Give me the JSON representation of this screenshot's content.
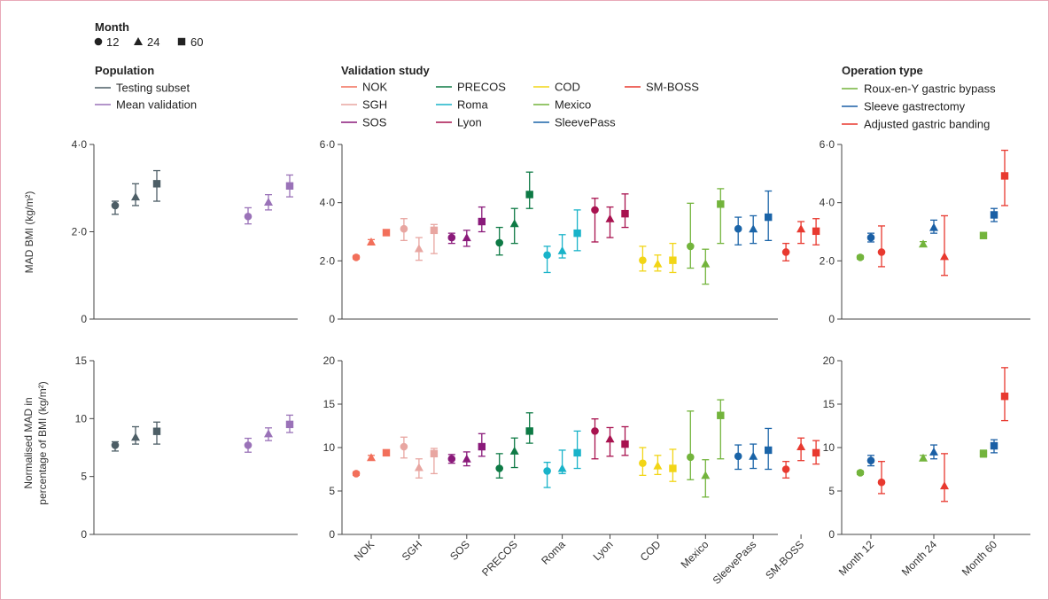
{
  "legend": {
    "month": {
      "title": "Month",
      "items": [
        "12",
        "24",
        "60"
      ]
    },
    "population": {
      "title": "Population",
      "items": [
        {
          "label": "Testing subset",
          "color": "#4d5e66"
        },
        {
          "label": "Mean validation",
          "color": "#9a72b8"
        }
      ]
    },
    "validation": {
      "title": "Validation study",
      "items": [
        {
          "label": "NOK",
          "color": "#f26f5a"
        },
        {
          "label": "SGH",
          "color": "#e8a6a1"
        },
        {
          "label": "SOS",
          "color": "#8a1a7a"
        },
        {
          "label": "PRECOS",
          "color": "#0e7a45"
        },
        {
          "label": "Roma",
          "color": "#19b3c9"
        },
        {
          "label": "Lyon",
          "color": "#a8124f"
        },
        {
          "label": "COD",
          "color": "#f2d516"
        },
        {
          "label": "Mexico",
          "color": "#73b43c"
        },
        {
          "label": "SleevePass",
          "color": "#1a64a8"
        },
        {
          "label": "SM-BOSS",
          "color": "#e8392f"
        }
      ]
    },
    "operation": {
      "title": "Operation type",
      "items": [
        {
          "label": "Roux-en-Y gastric bypass",
          "color": "#73b43c"
        },
        {
          "label": "Sleeve gastrectomy",
          "color": "#1a5fa5"
        },
        {
          "label": "Adjusted gastric banding",
          "color": "#e8392f"
        }
      ]
    }
  },
  "y_labels": {
    "top": "MAD BMI (kg/m²)",
    "bottom_line1": "Normalised MAD in",
    "bottom_line2": "percentage of BMI (kg/m²)"
  },
  "chart_data": [
    {
      "type": "scatter",
      "panel": "population-mad",
      "ylabel": "MAD BMI (kg/m²)",
      "ylim": [
        0,
        4
      ],
      "yticks": [
        "0",
        "2·0",
        "4·0"
      ],
      "groups": [
        "Testing subset",
        "Mean validation"
      ],
      "series": [
        {
          "name": "Testing subset",
          "color": "#4d5e66",
          "points": [
            {
              "month": 12,
              "y": 2.6,
              "lo": 2.4,
              "hi": 2.7
            },
            {
              "month": 24,
              "y": 2.8,
              "lo": 2.6,
              "hi": 3.1
            },
            {
              "month": 60,
              "y": 3.1,
              "lo": 2.7,
              "hi": 3.4
            }
          ]
        },
        {
          "name": "Mean validation",
          "color": "#9a72b8",
          "points": [
            {
              "month": 12,
              "y": 2.35,
              "lo": 2.18,
              "hi": 2.55
            },
            {
              "month": 24,
              "y": 2.68,
              "lo": 2.5,
              "hi": 2.85
            },
            {
              "month": 60,
              "y": 3.05,
              "lo": 2.8,
              "hi": 3.3
            }
          ]
        }
      ]
    },
    {
      "type": "scatter",
      "panel": "validation-mad",
      "ylim": [
        0,
        6
      ],
      "yticks": [
        "0",
        "2·0",
        "4·0",
        "6·0"
      ],
      "groups": [
        "NOK",
        "SGH",
        "SOS",
        "PRECOS",
        "Roma",
        "Lyon",
        "COD",
        "Mexico",
        "SleevePass",
        "SM-BOSS"
      ],
      "series": [
        {
          "name": "NOK",
          "color": "#f26f5a",
          "points": [
            {
              "month": 12,
              "y": 2.12,
              "lo": 2.06,
              "hi": 2.18
            },
            {
              "month": 24,
              "y": 2.65,
              "lo": 2.57,
              "hi": 2.73
            },
            {
              "month": 60,
              "y": 2.97,
              "lo": 2.89,
              "hi": 3.05
            }
          ]
        },
        {
          "name": "SGH",
          "color": "#e8a6a1",
          "points": [
            {
              "month": 12,
              "y": 3.1,
              "lo": 2.7,
              "hi": 3.45
            },
            {
              "month": 24,
              "y": 2.42,
              "lo": 2.02,
              "hi": 2.8
            },
            {
              "month": 60,
              "y": 3.05,
              "lo": 2.25,
              "hi": 3.25
            }
          ]
        },
        {
          "name": "SOS",
          "color": "#8a1a7a",
          "points": [
            {
              "month": 12,
              "y": 2.8,
              "lo": 2.6,
              "hi": 2.95
            },
            {
              "month": 24,
              "y": 2.8,
              "lo": 2.5,
              "hi": 3.05
            },
            {
              "month": 60,
              "y": 3.35,
              "lo": 3.0,
              "hi": 3.85
            }
          ]
        },
        {
          "name": "PRECOS",
          "color": "#0e7a45",
          "points": [
            {
              "month": 12,
              "y": 2.62,
              "lo": 2.2,
              "hi": 3.15
            },
            {
              "month": 24,
              "y": 3.28,
              "lo": 2.6,
              "hi": 3.8
            },
            {
              "month": 60,
              "y": 4.28,
              "lo": 3.8,
              "hi": 5.05
            }
          ]
        },
        {
          "name": "Roma",
          "color": "#19b3c9",
          "points": [
            {
              "month": 12,
              "y": 2.2,
              "lo": 1.6,
              "hi": 2.5
            },
            {
              "month": 24,
              "y": 2.35,
              "lo": 2.1,
              "hi": 2.9
            },
            {
              "month": 60,
              "y": 2.95,
              "lo": 2.35,
              "hi": 3.75
            }
          ]
        },
        {
          "name": "Lyon",
          "color": "#a8124f",
          "points": [
            {
              "month": 12,
              "y": 3.75,
              "lo": 2.65,
              "hi": 4.15
            },
            {
              "month": 24,
              "y": 3.45,
              "lo": 2.8,
              "hi": 3.85
            },
            {
              "month": 60,
              "y": 3.62,
              "lo": 3.15,
              "hi": 4.3
            }
          ]
        },
        {
          "name": "COD",
          "color": "#f2d516",
          "points": [
            {
              "month": 12,
              "y": 2.02,
              "lo": 1.65,
              "hi": 2.5
            },
            {
              "month": 24,
              "y": 1.9,
              "lo": 1.65,
              "hi": 2.2
            },
            {
              "month": 60,
              "y": 2.02,
              "lo": 1.6,
              "hi": 2.6
            }
          ]
        },
        {
          "name": "Mexico",
          "color": "#73b43c",
          "points": [
            {
              "month": 12,
              "y": 2.5,
              "lo": 1.75,
              "hi": 3.98
            },
            {
              "month": 24,
              "y": 1.9,
              "lo": 1.2,
              "hi": 2.4
            },
            {
              "month": 60,
              "y": 3.95,
              "lo": 2.6,
              "hi": 4.48
            }
          ]
        },
        {
          "name": "SleevePass",
          "color": "#1a64a8",
          "points": [
            {
              "month": 12,
              "y": 3.1,
              "lo": 2.55,
              "hi": 3.5
            },
            {
              "month": 24,
              "y": 3.1,
              "lo": 2.6,
              "hi": 3.55
            },
            {
              "month": 60,
              "y": 3.5,
              "lo": 2.7,
              "hi": 4.4
            }
          ]
        },
        {
          "name": "SM-BOSS",
          "color": "#e8392f",
          "points": [
            {
              "month": 12,
              "y": 2.3,
              "lo": 2.0,
              "hi": 2.6
            },
            {
              "month": 24,
              "y": 3.1,
              "lo": 2.6,
              "hi": 3.35
            },
            {
              "month": 60,
              "y": 3.02,
              "lo": 2.55,
              "hi": 3.45
            }
          ]
        }
      ]
    },
    {
      "type": "scatter",
      "panel": "operation-mad",
      "ylim": [
        0,
        6
      ],
      "yticks": [
        "0",
        "2·0",
        "4·0",
        "6·0"
      ],
      "groups": [
        "Month 12",
        "Month 24",
        "Month 60"
      ],
      "series": [
        {
          "name": "Roux-en-Y gastric bypass",
          "color": "#73b43c",
          "points": [
            {
              "group": "Month 12",
              "month": 12,
              "y": 2.12,
              "lo": 2.06,
              "hi": 2.18
            },
            {
              "group": "Month 24",
              "month": 24,
              "y": 2.58,
              "lo": 2.5,
              "hi": 2.66
            },
            {
              "group": "Month 60",
              "month": 60,
              "y": 2.87,
              "lo": 2.77,
              "hi": 2.97
            }
          ]
        },
        {
          "name": "Sleeve gastrectomy",
          "color": "#1a5fa5",
          "points": [
            {
              "group": "Month 12",
              "month": 12,
              "y": 2.8,
              "lo": 2.65,
              "hi": 2.95
            },
            {
              "group": "Month 24",
              "month": 24,
              "y": 3.15,
              "lo": 2.95,
              "hi": 3.4
            },
            {
              "group": "Month 60",
              "month": 60,
              "y": 3.58,
              "lo": 3.35,
              "hi": 3.8
            }
          ]
        },
        {
          "name": "Adjusted gastric banding",
          "color": "#e8392f",
          "points": [
            {
              "group": "Month 12",
              "month": 12,
              "y": 2.3,
              "lo": 1.8,
              "hi": 3.2
            },
            {
              "group": "Month 24",
              "month": 24,
              "y": 2.15,
              "lo": 1.5,
              "hi": 3.55
            },
            {
              "group": "Month 60",
              "month": 60,
              "y": 4.92,
              "lo": 3.9,
              "hi": 5.8
            }
          ]
        }
      ]
    },
    {
      "type": "scatter",
      "panel": "population-normalised",
      "ylabel": "Normalised MAD in percentage of BMI (kg/m²)",
      "ylim": [
        0,
        15
      ],
      "yticks": [
        "0",
        "5",
        "10",
        "15"
      ],
      "groups": [
        "Testing subset",
        "Mean validation"
      ],
      "series": [
        {
          "name": "Testing subset",
          "color": "#4d5e66",
          "points": [
            {
              "month": 12,
              "y": 7.7,
              "lo": 7.2,
              "hi": 8.0
            },
            {
              "month": 24,
              "y": 8.4,
              "lo": 7.8,
              "hi": 9.3
            },
            {
              "month": 60,
              "y": 8.9,
              "lo": 7.8,
              "hi": 9.7
            }
          ]
        },
        {
          "name": "Mean validation",
          "color": "#9a72b8",
          "points": [
            {
              "month": 12,
              "y": 7.7,
              "lo": 7.1,
              "hi": 8.3
            },
            {
              "month": 24,
              "y": 8.7,
              "lo": 8.1,
              "hi": 9.2
            },
            {
              "month": 60,
              "y": 9.5,
              "lo": 8.8,
              "hi": 10.3
            }
          ]
        }
      ]
    },
    {
      "type": "scatter",
      "panel": "validation-normalised",
      "ylim": [
        0,
        20
      ],
      "yticks": [
        "0",
        "5",
        "10",
        "15",
        "20"
      ],
      "groups": [
        "NOK",
        "SGH",
        "SOS",
        "PRECOS",
        "Roma",
        "Lyon",
        "COD",
        "Mexico",
        "SleevePass",
        "SM-BOSS"
      ],
      "series": [
        {
          "name": "NOK",
          "color": "#f26f5a",
          "points": [
            {
              "month": 12,
              "y": 7.0,
              "lo": 6.8,
              "hi": 7.2
            },
            {
              "month": 24,
              "y": 8.85,
              "lo": 8.6,
              "hi": 9.1
            },
            {
              "month": 60,
              "y": 9.4,
              "lo": 9.1,
              "hi": 9.7
            }
          ]
        },
        {
          "name": "SGH",
          "color": "#e8a6a1",
          "points": [
            {
              "month": 12,
              "y": 10.1,
              "lo": 8.8,
              "hi": 11.2
            },
            {
              "month": 24,
              "y": 7.7,
              "lo": 6.5,
              "hi": 8.7
            },
            {
              "month": 60,
              "y": 9.3,
              "lo": 7.0,
              "hi": 9.9
            }
          ]
        },
        {
          "name": "SOS",
          "color": "#8a1a7a",
          "points": [
            {
              "month": 12,
              "y": 8.7,
              "lo": 8.2,
              "hi": 9.2
            },
            {
              "month": 24,
              "y": 8.7,
              "lo": 7.9,
              "hi": 9.5
            },
            {
              "month": 60,
              "y": 10.1,
              "lo": 9.0,
              "hi": 11.6
            }
          ]
        },
        {
          "name": "PRECOS",
          "color": "#0e7a45",
          "points": [
            {
              "month": 12,
              "y": 7.6,
              "lo": 6.5,
              "hi": 9.3
            },
            {
              "month": 24,
              "y": 9.6,
              "lo": 7.7,
              "hi": 11.1
            },
            {
              "month": 60,
              "y": 11.9,
              "lo": 10.5,
              "hi": 14.0
            }
          ]
        },
        {
          "name": "Roma",
          "color": "#19b3c9",
          "points": [
            {
              "month": 12,
              "y": 7.3,
              "lo": 5.4,
              "hi": 8.3
            },
            {
              "month": 24,
              "y": 7.6,
              "lo": 7.0,
              "hi": 9.7
            },
            {
              "month": 60,
              "y": 9.4,
              "lo": 7.6,
              "hi": 11.9
            }
          ]
        },
        {
          "name": "Lyon",
          "color": "#a8124f",
          "points": [
            {
              "month": 12,
              "y": 11.9,
              "lo": 8.7,
              "hi": 13.3
            },
            {
              "month": 24,
              "y": 11.0,
              "lo": 9.0,
              "hi": 12.3
            },
            {
              "month": 60,
              "y": 10.4,
              "lo": 9.1,
              "hi": 12.4
            }
          ]
        },
        {
          "name": "COD",
          "color": "#f2d516",
          "points": [
            {
              "month": 12,
              "y": 8.2,
              "lo": 6.8,
              "hi": 10.0
            },
            {
              "month": 24,
              "y": 7.9,
              "lo": 6.9,
              "hi": 9.1
            },
            {
              "month": 60,
              "y": 7.6,
              "lo": 6.1,
              "hi": 9.8
            }
          ]
        },
        {
          "name": "Mexico",
          "color": "#73b43c",
          "points": [
            {
              "month": 12,
              "y": 8.9,
              "lo": 6.3,
              "hi": 14.2
            },
            {
              "month": 24,
              "y": 6.8,
              "lo": 4.3,
              "hi": 8.6
            },
            {
              "month": 60,
              "y": 13.7,
              "lo": 8.7,
              "hi": 15.5
            }
          ]
        },
        {
          "name": "SleevePass",
          "color": "#1a64a8",
          "points": [
            {
              "month": 12,
              "y": 9.0,
              "lo": 7.5,
              "hi": 10.3
            },
            {
              "month": 24,
              "y": 9.0,
              "lo": 7.6,
              "hi": 10.4
            },
            {
              "month": 60,
              "y": 9.7,
              "lo": 7.5,
              "hi": 12.2
            }
          ]
        },
        {
          "name": "SM-BOSS",
          "color": "#e8392f",
          "points": [
            {
              "month": 12,
              "y": 7.5,
              "lo": 6.5,
              "hi": 8.4
            },
            {
              "month": 24,
              "y": 10.1,
              "lo": 8.5,
              "hi": 11.1
            },
            {
              "month": 60,
              "y": 9.4,
              "lo": 8.1,
              "hi": 10.8
            }
          ]
        }
      ]
    },
    {
      "type": "scatter",
      "panel": "operation-normalised",
      "ylim": [
        0,
        20
      ],
      "yticks": [
        "0",
        "5",
        "10",
        "15",
        "20"
      ],
      "groups": [
        "Month 12",
        "Month 24",
        "Month 60"
      ],
      "series": [
        {
          "name": "Roux-en-Y gastric bypass",
          "color": "#73b43c",
          "points": [
            {
              "group": "Month 12",
              "month": 12,
              "y": 7.1,
              "lo": 6.9,
              "hi": 7.3
            },
            {
              "group": "Month 24",
              "month": 24,
              "y": 8.8,
              "lo": 8.5,
              "hi": 9.1
            },
            {
              "group": "Month 60",
              "month": 60,
              "y": 9.3,
              "lo": 8.9,
              "hi": 9.7
            }
          ]
        },
        {
          "name": "Sleeve gastrectomy",
          "color": "#1a5fa5",
          "points": [
            {
              "group": "Month 12",
              "month": 12,
              "y": 8.5,
              "lo": 7.9,
              "hi": 9.1
            },
            {
              "group": "Month 24",
              "month": 24,
              "y": 9.5,
              "lo": 8.7,
              "hi": 10.3
            },
            {
              "group": "Month 60",
              "month": 60,
              "y": 10.2,
              "lo": 9.4,
              "hi": 10.9
            }
          ]
        },
        {
          "name": "Adjusted gastric banding",
          "color": "#e8392f",
          "points": [
            {
              "group": "Month 12",
              "month": 12,
              "y": 6.0,
              "lo": 4.7,
              "hi": 8.4
            },
            {
              "group": "Month 24",
              "month": 24,
              "y": 5.6,
              "lo": 3.8,
              "hi": 9.3
            },
            {
              "group": "Month 60",
              "month": 60,
              "y": 15.9,
              "lo": 13.1,
              "hi": 19.2
            }
          ]
        }
      ]
    }
  ]
}
